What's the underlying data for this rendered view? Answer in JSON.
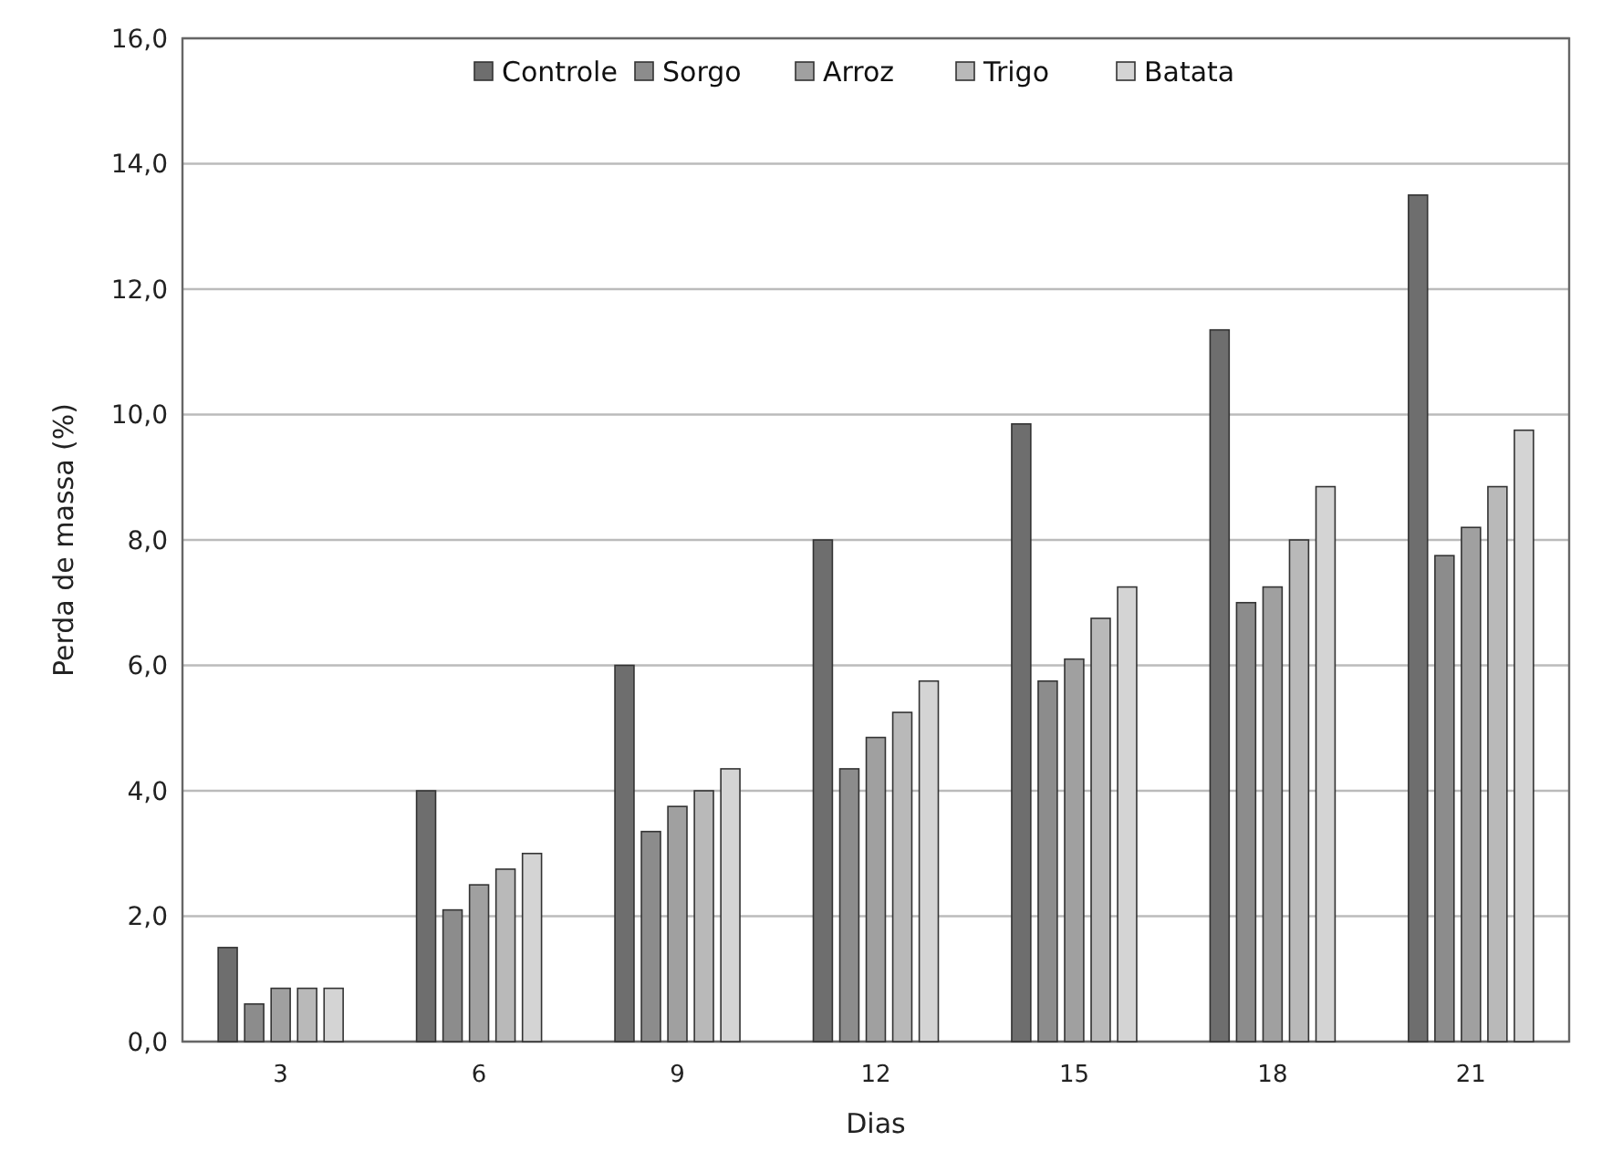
{
  "chart_data": {
    "type": "bar",
    "xlabel": "Dias",
    "ylabel": "Perda de massa (%)",
    "categories": [
      "3",
      "6",
      "9",
      "12",
      "15",
      "18",
      "21"
    ],
    "series": [
      {
        "name": "Controle",
        "color": "#6e6e6e",
        "values": [
          1.5,
          4.0,
          6.0,
          8.0,
          9.85,
          11.35,
          13.5
        ]
      },
      {
        "name": "Sorgo",
        "color": "#8c8c8c",
        "values": [
          0.6,
          2.1,
          3.35,
          4.35,
          5.75,
          7.0,
          7.75
        ]
      },
      {
        "name": "Arroz",
        "color": "#a0a0a0",
        "values": [
          0.85,
          2.5,
          3.75,
          4.85,
          6.1,
          7.25,
          8.2
        ]
      },
      {
        "name": "Trigo",
        "color": "#b9b9b9",
        "values": [
          0.85,
          2.75,
          4.0,
          5.25,
          6.75,
          8.0,
          8.85
        ]
      },
      {
        "name": "Batata",
        "color": "#d4d4d4",
        "values": [
          0.85,
          3.0,
          4.35,
          5.75,
          7.25,
          8.85,
          9.75
        ]
      }
    ],
    "ylim": [
      0,
      16
    ],
    "yticks": [
      {
        "value": 0,
        "label": "0,0"
      },
      {
        "value": 2,
        "label": "2,0"
      },
      {
        "value": 4,
        "label": "4,0"
      },
      {
        "value": 6,
        "label": "6,0"
      },
      {
        "value": 8,
        "label": "8,0"
      },
      {
        "value": 10,
        "label": "10,0"
      },
      {
        "value": 12,
        "label": "12,0"
      },
      {
        "value": 14,
        "label": "14,0"
      },
      {
        "value": 16,
        "label": "16,0"
      }
    ],
    "grid": "y",
    "legend": "top"
  }
}
